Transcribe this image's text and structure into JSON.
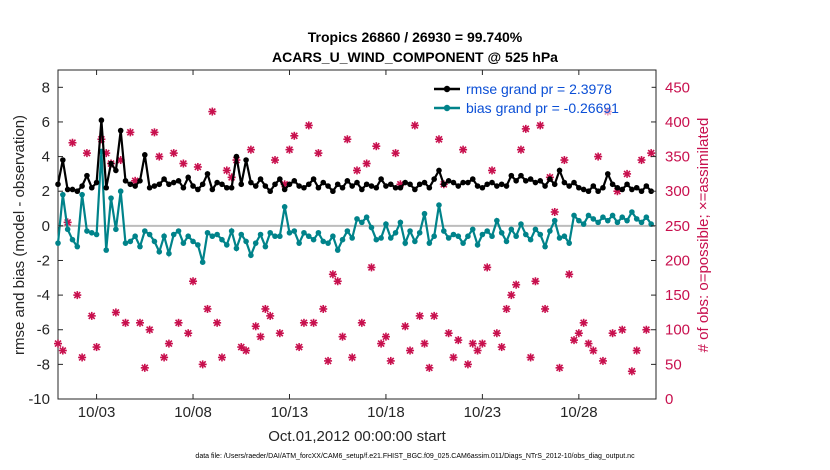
{
  "chart_data": {
    "type": "line",
    "title_line1": "Tropics 26860 / 26930 = 99.740%",
    "title_line2": "ACARS_U_WIND_COMPONENT @ 525 hPa",
    "ylabel_left": "rmse and bias (model - observation)",
    "ylabel_right": "# of obs: o=possible; ×=assimilated",
    "xlabel": "Oct.01,2012 00:00:00 start",
    "footer": "data file: /Users/raeder/DAI/ATM_forcXX/CAM6_setup/f.e21.FHIST_BGC.f09_025.CAM6assim.011/Diags_NTrS_2012-10/obs_diag_output.nc",
    "ylim_left": [
      -10,
      9
    ],
    "ylim_right": [
      0,
      475
    ],
    "xlim": [
      1,
      32
    ],
    "yticks_left": [
      -10,
      -8,
      -6,
      -4,
      -2,
      0,
      2,
      4,
      6,
      8
    ],
    "yticks_right": [
      0,
      50,
      100,
      150,
      200,
      250,
      300,
      350,
      400,
      450
    ],
    "xticks": [
      {
        "value": 3,
        "label": "10/03"
      },
      {
        "value": 8,
        "label": "10/08"
      },
      {
        "value": 13,
        "label": "10/13"
      },
      {
        "value": 18,
        "label": "10/18"
      },
      {
        "value": 23,
        "label": "10/23"
      },
      {
        "value": 28,
        "label": "10/28"
      }
    ],
    "legend": [
      {
        "name": "rmse grand pr = 2.3978",
        "color": "#000000"
      },
      {
        "name": "bias grand pr = -0.26691",
        "color": "#00838a"
      }
    ],
    "colors": {
      "rmse": "#000000",
      "bias": "#00838a",
      "obs": "#c8104e",
      "zero": "#bdbdbd"
    },
    "series": [
      {
        "name": "rmse",
        "x": [
          1.0,
          1.25,
          1.5,
          1.75,
          2.0,
          2.25,
          2.5,
          2.75,
          3.0,
          3.25,
          3.5,
          3.75,
          4.0,
          4.25,
          4.5,
          4.75,
          5.0,
          5.25,
          5.5,
          5.75,
          6.0,
          6.25,
          6.5,
          6.75,
          7.0,
          7.25,
          7.5,
          7.75,
          8.0,
          8.25,
          8.5,
          8.75,
          9.0,
          9.25,
          9.5,
          9.75,
          10.0,
          10.25,
          10.5,
          10.75,
          11.0,
          11.25,
          11.5,
          11.75,
          12.0,
          12.25,
          12.5,
          12.75,
          13.0,
          13.25,
          13.5,
          13.75,
          14.0,
          14.25,
          14.5,
          14.75,
          15.0,
          15.25,
          15.5,
          15.75,
          16.0,
          16.25,
          16.5,
          16.75,
          17.0,
          17.25,
          17.5,
          17.75,
          18.0,
          18.25,
          18.5,
          18.75,
          19.0,
          19.25,
          19.5,
          19.75,
          20.0,
          20.25,
          20.5,
          20.75,
          21.0,
          21.25,
          21.5,
          21.75,
          22.0,
          22.25,
          22.5,
          22.75,
          23.0,
          23.25,
          23.5,
          23.75,
          24.0,
          24.25,
          24.5,
          24.75,
          25.0,
          25.25,
          25.5,
          25.75,
          26.0,
          26.25,
          26.5,
          26.75,
          27.0,
          27.25,
          27.5,
          27.75,
          28.0,
          28.25,
          28.5,
          28.75,
          29.0,
          29.25,
          29.5,
          29.75,
          30.0,
          30.25,
          30.5,
          30.75,
          31.0,
          31.25,
          31.5,
          31.75
        ],
        "values": [
          2.4,
          3.8,
          2.1,
          2.1,
          2.0,
          2.3,
          2.9,
          2.2,
          2.5,
          6.1,
          2.2,
          3.6,
          3.2,
          5.5,
          2.6,
          2.4,
          2.3,
          2.6,
          4.1,
          2.2,
          2.3,
          2.4,
          2.7,
          2.4,
          2.5,
          2.6,
          2.2,
          2.8,
          2.3,
          2.1,
          2.4,
          3.0,
          2.1,
          2.5,
          2.4,
          2.2,
          2.2,
          4.0,
          2.4,
          3.8,
          2.5,
          2.3,
          2.7,
          2.3,
          2.0,
          2.4,
          2.7,
          2.1,
          2.4,
          2.6,
          2.3,
          2.2,
          2.4,
          2.7,
          2.2,
          2.5,
          2.3,
          2.0,
          2.4,
          2.2,
          2.6,
          2.3,
          2.5,
          2.1,
          2.4,
          2.3,
          2.2,
          2.7,
          2.3,
          2.4,
          2.2,
          2.2,
          2.5,
          2.4,
          2.1,
          2.4,
          2.5,
          2.2,
          2.7,
          3.2,
          2.4,
          2.6,
          2.5,
          2.3,
          2.5,
          2.5,
          2.7,
          2.3,
          2.2,
          2.4,
          2.5,
          2.3,
          2.4,
          2.3,
          2.9,
          2.6,
          2.9,
          2.6,
          2.7,
          2.5,
          2.6,
          2.3,
          2.7,
          2.4,
          3.2,
          2.5,
          2.3,
          2.5,
          2.2,
          2.1,
          2.0,
          2.3,
          2.0,
          2.2,
          3.0,
          2.4,
          2.2,
          2.1,
          2.4,
          2.1,
          2.2,
          2.0,
          2.3,
          2.0
        ]
      },
      {
        "name": "bias",
        "x": [
          1.0,
          1.25,
          1.5,
          1.75,
          2.0,
          2.25,
          2.5,
          2.75,
          3.0,
          3.25,
          3.5,
          3.75,
          4.0,
          4.25,
          4.5,
          4.75,
          5.0,
          5.25,
          5.5,
          5.75,
          6.0,
          6.25,
          6.5,
          6.75,
          7.0,
          7.25,
          7.5,
          7.75,
          8.0,
          8.25,
          8.5,
          8.75,
          9.0,
          9.25,
          9.5,
          9.75,
          10.0,
          10.25,
          10.5,
          10.75,
          11.0,
          11.25,
          11.5,
          11.75,
          12.0,
          12.25,
          12.5,
          12.75,
          13.0,
          13.25,
          13.5,
          13.75,
          14.0,
          14.25,
          14.5,
          14.75,
          15.0,
          15.25,
          15.5,
          15.75,
          16.0,
          16.25,
          16.5,
          16.75,
          17.0,
          17.25,
          17.5,
          17.75,
          18.0,
          18.25,
          18.5,
          18.75,
          19.0,
          19.25,
          19.5,
          19.75,
          20.0,
          20.25,
          20.5,
          20.75,
          21.0,
          21.25,
          21.5,
          21.75,
          22.0,
          22.25,
          22.5,
          22.75,
          23.0,
          23.25,
          23.5,
          23.75,
          24.0,
          24.25,
          24.5,
          24.75,
          25.0,
          25.25,
          25.5,
          25.75,
          26.0,
          26.25,
          26.5,
          26.75,
          27.0,
          27.25,
          27.5,
          27.75,
          28.0,
          28.25,
          28.5,
          28.75,
          29.0,
          29.25,
          29.5,
          29.75,
          30.0,
          30.25,
          30.5,
          30.75,
          31.0,
          31.25,
          31.5,
          31.75
        ],
        "values": [
          -1.0,
          1.8,
          -0.2,
          -0.8,
          -1.2,
          1.8,
          -0.3,
          -0.4,
          -0.5,
          4.3,
          -1.4,
          1.6,
          -0.2,
          2.0,
          -1.0,
          -0.9,
          -0.6,
          -1.2,
          -0.3,
          -0.5,
          -0.9,
          -1.5,
          -0.6,
          -1.6,
          -0.5,
          -0.3,
          -1.0,
          -0.6,
          -0.9,
          -1.1,
          -2.1,
          -0.4,
          -0.6,
          -0.5,
          -0.8,
          -1.1,
          -0.3,
          -1.3,
          -0.5,
          -0.9,
          -1.7,
          -1.0,
          -0.5,
          -1.2,
          -0.4,
          -0.6,
          -0.6,
          1.1,
          -0.4,
          -0.3,
          -1.0,
          -0.4,
          -0.6,
          -0.8,
          -0.4,
          -0.9,
          -1.0,
          -0.6,
          -1.4,
          -0.8,
          -0.3,
          -0.7,
          0.4,
          0.2,
          0.5,
          -0.1,
          -0.8,
          -0.7,
          0.1,
          -0.7,
          -0.4,
          0.2,
          -1.0,
          -0.3,
          -0.9,
          -0.4,
          0.7,
          -1.0,
          -0.6,
          1.2,
          -0.3,
          -0.7,
          -0.5,
          -0.6,
          -1.0,
          -0.6,
          -0.2,
          -1.1,
          -0.5,
          -0.3,
          -0.6,
          0.3,
          -0.4,
          -0.9,
          -0.2,
          -0.6,
          0.1,
          -0.5,
          -0.8,
          -0.2,
          -0.5,
          -1.2,
          -0.3,
          0.3,
          -0.7,
          -0.6,
          -1.0,
          0.6,
          0.3,
          0.1,
          0.6,
          0.4,
          0.2,
          0.5,
          0.3,
          0.6,
          0.2,
          0.5,
          0.3,
          0.8,
          0.4,
          0.2,
          0.5,
          0.1
        ]
      },
      {
        "name": "obs_assimilated",
        "x": [
          1.0,
          1.25,
          1.5,
          1.75,
          2.0,
          2.25,
          2.5,
          2.75,
          3.0,
          3.25,
          3.5,
          3.75,
          4.0,
          4.25,
          4.5,
          4.75,
          5.0,
          5.25,
          5.5,
          5.75,
          6.0,
          6.25,
          6.5,
          6.75,
          7.0,
          7.25,
          7.5,
          7.75,
          8.0,
          8.25,
          8.5,
          8.75,
          9.0,
          9.25,
          9.5,
          9.75,
          10.0,
          10.25,
          10.5,
          10.75,
          11.0,
          11.25,
          11.5,
          11.75,
          12.0,
          12.25,
          12.5,
          12.75,
          13.0,
          13.25,
          13.5,
          13.75,
          14.0,
          14.25,
          14.5,
          14.75,
          15.0,
          15.25,
          15.5,
          15.75,
          16.0,
          16.25,
          16.5,
          16.75,
          17.0,
          17.25,
          17.5,
          17.75,
          18.0,
          18.25,
          18.5,
          18.75,
          19.0,
          19.25,
          19.5,
          19.75,
          20.0,
          20.25,
          20.5,
          20.75,
          21.0,
          21.25,
          21.5,
          21.75,
          22.0,
          22.25,
          22.5,
          22.75,
          23.0,
          23.25,
          23.5,
          23.75,
          24.0,
          24.25,
          24.5,
          24.75,
          25.0,
          25.25,
          25.5,
          25.75,
          26.0,
          26.25,
          26.5,
          26.75,
          27.0,
          27.25,
          27.5,
          27.75,
          28.0,
          28.25,
          28.5,
          28.75,
          29.0,
          29.25,
          29.5,
          29.75,
          30.0,
          30.25,
          30.5,
          30.75,
          31.0,
          31.25,
          31.5,
          31.75
        ],
        "values": [
          80,
          70,
          255,
          370,
          150,
          60,
          355,
          120,
          75,
          375,
          355,
          340,
          125,
          345,
          110,
          385,
          315,
          110,
          45,
          100,
          385,
          350,
          60,
          80,
          355,
          110,
          340,
          95,
          170,
          335,
          50,
          130,
          415,
          110,
          60,
          330,
          320,
          345,
          75,
          70,
          360,
          105,
          90,
          130,
          120,
          345,
          95,
          310,
          360,
          380,
          75,
          110,
          395,
          110,
          355,
          130,
          55,
          180,
          170,
          90,
          375,
          60,
          330,
          110,
          340,
          190,
          365,
          80,
          90,
          55,
          355,
          310,
          105,
          70,
          395,
          120,
          80,
          45,
          120,
          375,
          310,
          95,
          60,
          85,
          360,
          50,
          80,
          70,
          80,
          190,
          330,
          95,
          75,
          130,
          150,
          165,
          360,
          390,
          60,
          170,
          395,
          130,
          320,
          270,
          45,
          345,
          180,
          85,
          95,
          110,
          80,
          70,
          350,
          55,
          415,
          95,
          300,
          100,
          325,
          40,
          70,
          345,
          100,
          355
        ]
      }
    ]
  }
}
